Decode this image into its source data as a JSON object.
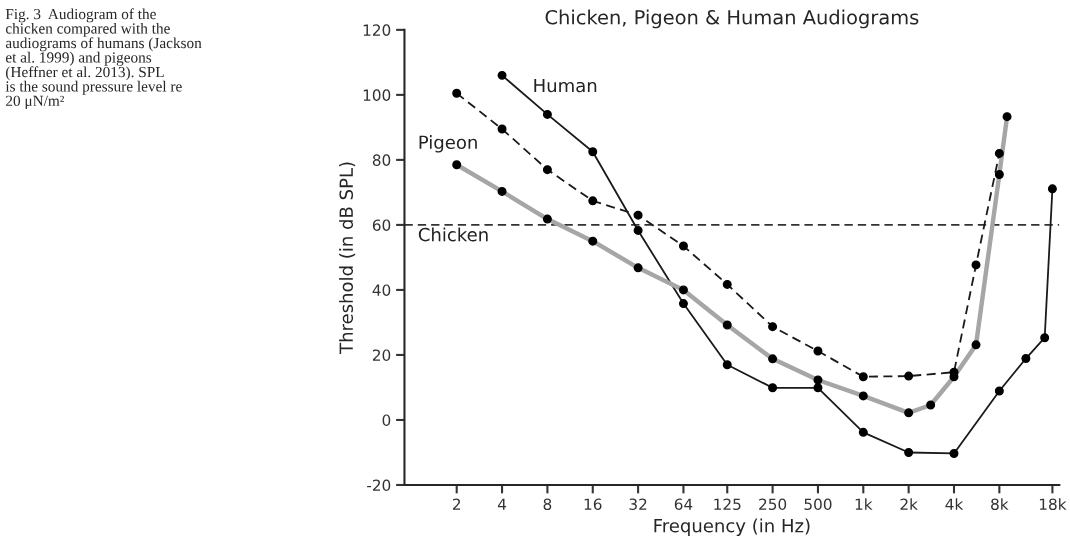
{
  "chart_data": {
    "type": "line",
    "title": "Chicken, Pigeon & Human Audiograms",
    "xlabel": "Frequency (in Hz)",
    "ylabel": "Threshold (in dB SPL)",
    "log": "x",
    "marker": "circle",
    "grid": false,
    "legend": false,
    "xlim": [
      0.9,
      20000
    ],
    "ylim": [
      -20,
      120
    ],
    "xticks": [
      2,
      4,
      8,
      16,
      32,
      64,
      125,
      250,
      500,
      {
        "value": 1000,
        "label": "1k"
      },
      {
        "value": 2000,
        "label": "2k"
      },
      {
        "value": 4000,
        "label": "4k"
      },
      {
        "value": 8000,
        "label": "8k"
      },
      {
        "value": 18000,
        "label": "18k"
      }
    ],
    "yticks": [
      -20,
      0,
      20,
      40,
      60,
      80,
      100,
      120
    ],
    "series": [
      {
        "name": "Human",
        "color": "#1a1a1a",
        "line_style": "solid",
        "x": [
          4,
          8,
          16,
          32,
          64,
          125,
          250,
          500,
          1000,
          2000,
          4000,
          8000,
          12000,
          16000,
          18000
        ],
        "values": [
          106,
          94,
          82.5,
          58.3,
          35.8,
          17,
          9.9,
          9.9,
          -3.8,
          -10,
          -10.3,
          8.9,
          18.9,
          25.3,
          71.1
        ]
      },
      {
        "name": "Pigeon",
        "color": "#1a1a1a",
        "line_style": "dashed",
        "x": [
          2,
          4,
          8,
          16,
          32,
          64,
          125,
          250,
          500,
          1000,
          2000,
          4000,
          5600,
          8000
        ],
        "values": [
          100.5,
          89.5,
          77,
          67.4,
          63,
          53.5,
          41.7,
          28.7,
          21.2,
          13.3,
          13.5,
          14.7,
          47.7,
          82
        ]
      },
      {
        "name": "Chicken",
        "color": "#a6a6a6",
        "line_style": "solid",
        "x": [
          2,
          4,
          8,
          16,
          32,
          64,
          125,
          250,
          500,
          1000,
          2000,
          2800,
          4000,
          5600,
          8000,
          9000
        ],
        "values": [
          78.5,
          70.3,
          61.8,
          55,
          46.8,
          40,
          29.2,
          18.8,
          12.3,
          7.4,
          2.2,
          4.6,
          13.3,
          23.1,
          75.5,
          93.3
        ]
      }
    ],
    "ref_lines": [
      {
        "axis": "y",
        "value": 60,
        "color": "#333333",
        "line_style": "dashed"
      }
    ],
    "annotations": [
      "Fig. 3  Audiogram of the\nchicken compared with the\naudiograms of humans (Jackson\net al. 1999) and pigeons\n(Heffner et al. 2013). SPL\nis the sound pressure level re\n20 μN/m²"
    ]
  }
}
